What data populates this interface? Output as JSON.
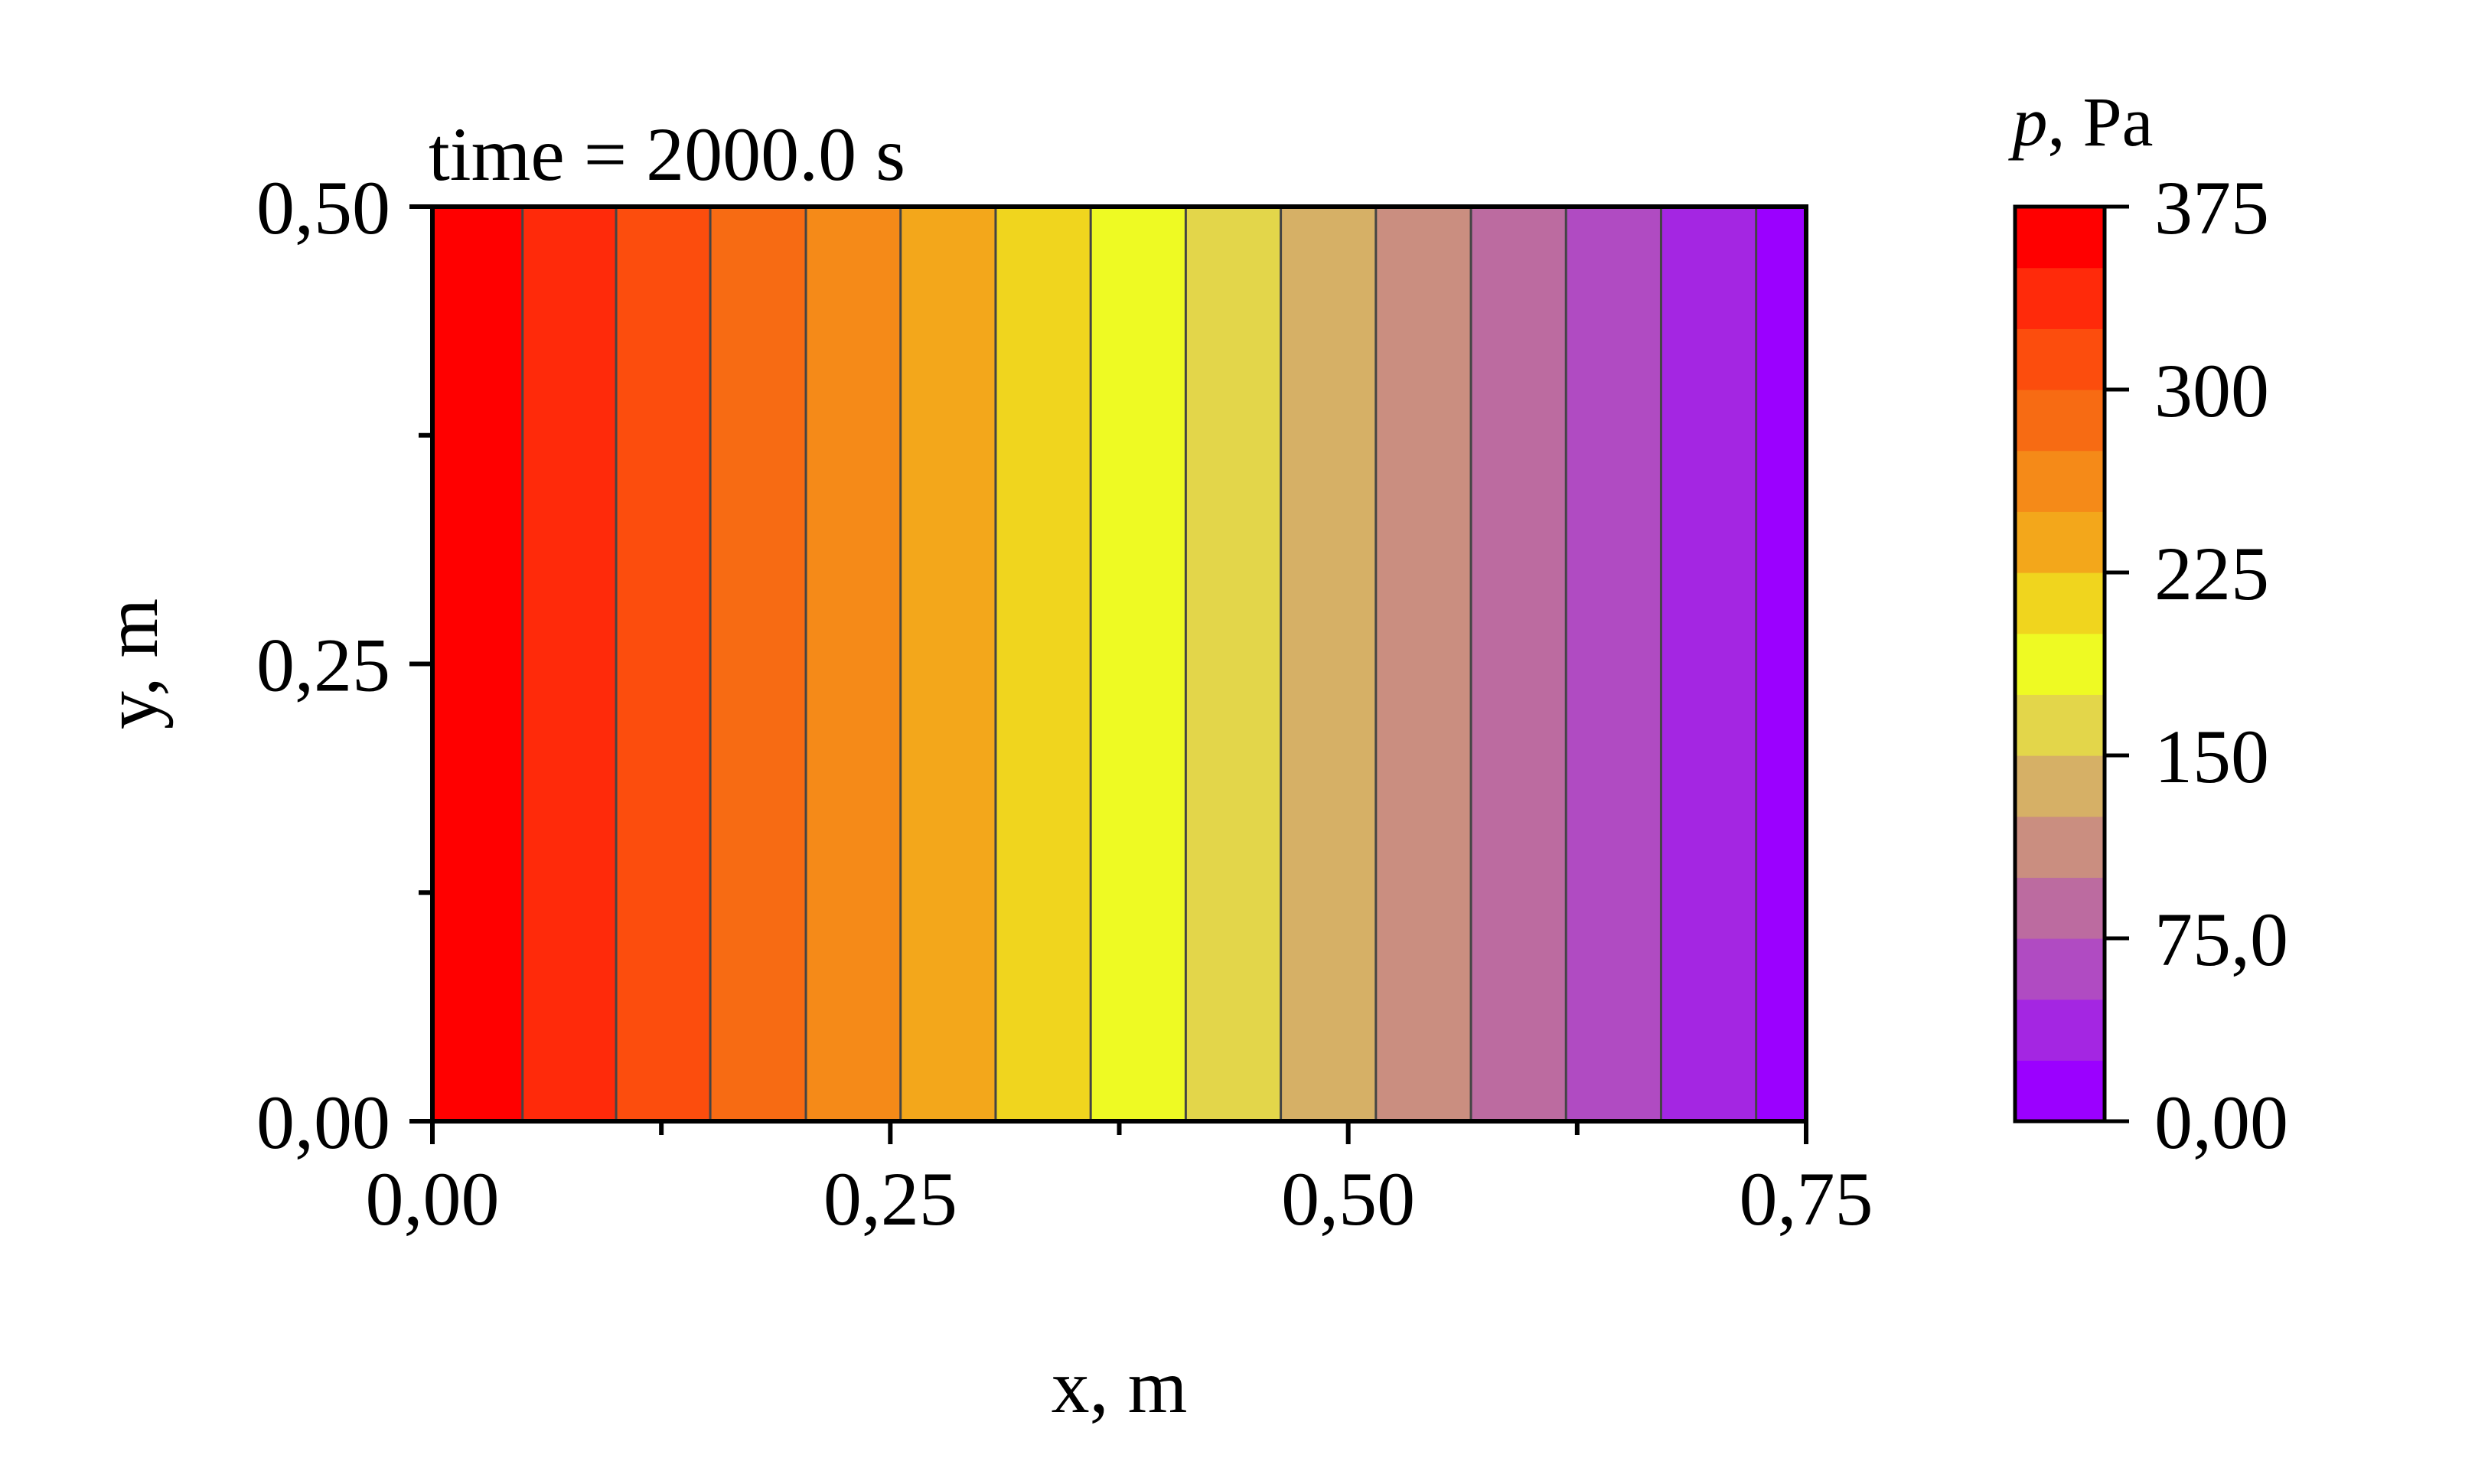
{
  "chart_data": {
    "type": "heatmap",
    "annotation": "time = 2000.0 s",
    "xlabel": "x, m",
    "ylabel": "y, m",
    "xlim": [
      0,
      0.75
    ],
    "ylim": [
      0,
      0.5
    ],
    "x_ticks": [
      {
        "value": 0.0,
        "label": "0,00"
      },
      {
        "value": 0.25,
        "label": "0,25"
      },
      {
        "value": 0.5,
        "label": "0,50"
      },
      {
        "value": 0.75,
        "label": "0,75"
      }
    ],
    "x_minor_ticks": [
      0.125,
      0.375,
      0.625
    ],
    "y_ticks": [
      {
        "value": 0.0,
        "label": "0,00"
      },
      {
        "value": 0.25,
        "label": "0,25"
      },
      {
        "value": 0.5,
        "label": "0,50"
      }
    ],
    "y_minor_ticks": [
      0.125,
      0.375
    ],
    "bands": [
      {
        "x0": 0.0,
        "x1": 0.0492,
        "color": "#ff0000"
      },
      {
        "x0": 0.0492,
        "x1": 0.1003,
        "color": "#ff2a0a"
      },
      {
        "x0": 0.1003,
        "x1": 0.1517,
        "color": "#fc4d0d"
      },
      {
        "x0": 0.1517,
        "x1": 0.2039,
        "color": "#f76b13"
      },
      {
        "x0": 0.2039,
        "x1": 0.2556,
        "color": "#f58a18"
      },
      {
        "x0": 0.2556,
        "x1": 0.3075,
        "color": "#f3a71b"
      },
      {
        "x0": 0.3075,
        "x1": 0.3594,
        "color": "#f0d51e"
      },
      {
        "x0": 0.3594,
        "x1": 0.4113,
        "color": "#eefa23"
      },
      {
        "x0": 0.4113,
        "x1": 0.4632,
        "color": "#e3d64a"
      },
      {
        "x0": 0.4632,
        "x1": 0.5151,
        "color": "#d6b066"
      },
      {
        "x0": 0.5151,
        "x1": 0.567,
        "color": "#ca8e80"
      },
      {
        "x0": 0.567,
        "x1": 0.6189,
        "color": "#bc6ba0"
      },
      {
        "x0": 0.6189,
        "x1": 0.6708,
        "color": "#b04bc2"
      },
      {
        "x0": 0.6708,
        "x1": 0.7227,
        "color": "#a426e2"
      },
      {
        "x0": 0.7227,
        "x1": 0.75,
        "color": "#9b00ff"
      }
    ],
    "colorbar": {
      "title": "p, Pa",
      "title_italic_part": "p",
      "title_rest": ", Pa",
      "range": [
        0,
        375
      ],
      "levels": [
        0,
        25,
        50,
        75,
        100,
        125,
        150,
        175,
        200,
        225,
        250,
        275,
        300,
        325,
        350,
        375
      ],
      "colors": [
        "#9b00ff",
        "#a426e2",
        "#b04bc2",
        "#bc6ba0",
        "#ca8e80",
        "#d6b066",
        "#e3d64a",
        "#eefa23",
        "#f0d51e",
        "#f3a71b",
        "#f58a18",
        "#f76b13",
        "#fc4d0d",
        "#ff2a0a",
        "#ff0000"
      ],
      "ticks": [
        {
          "value": 0,
          "label": "0,00"
        },
        {
          "value": 75,
          "label": "75,0"
        },
        {
          "value": 150,
          "label": "150"
        },
        {
          "value": 225,
          "label": "225"
        },
        {
          "value": 300,
          "label": "300"
        },
        {
          "value": 375,
          "label": "375"
        }
      ]
    }
  }
}
